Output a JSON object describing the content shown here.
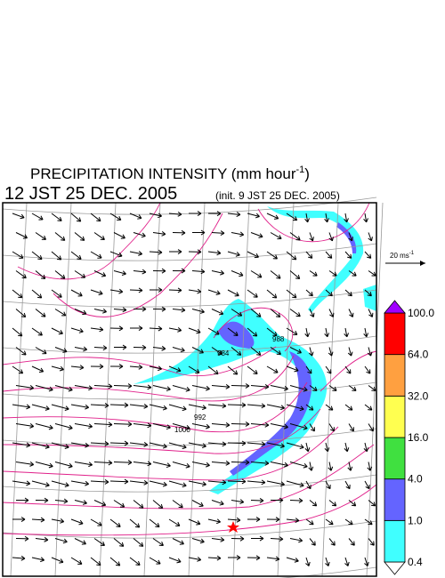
{
  "title": {
    "main": "PRECIPITATION INTENSITY (mm hour",
    "exponent": "-1",
    "close": ")"
  },
  "subtitle": {
    "time": "12 JST 25 DEC. 2005",
    "init": "(init. 9 JST 25 DEC. 2005)"
  },
  "vector_scale": {
    "label": "20 ms",
    "exponent": "-1"
  },
  "isobar_labels": [
    "984",
    "988",
    "992",
    "1000"
  ],
  "colorbar": {
    "labels": [
      "0.4",
      "1.0",
      "4.0",
      "16.0",
      "32.0",
      "64.0",
      "100.0"
    ],
    "colors": [
      "#ffffff",
      "#40ffff",
      "#6464ff",
      "#40e040",
      "#ffff50",
      "#ffa040",
      "#ff0000",
      "#a000ff"
    ]
  }
}
